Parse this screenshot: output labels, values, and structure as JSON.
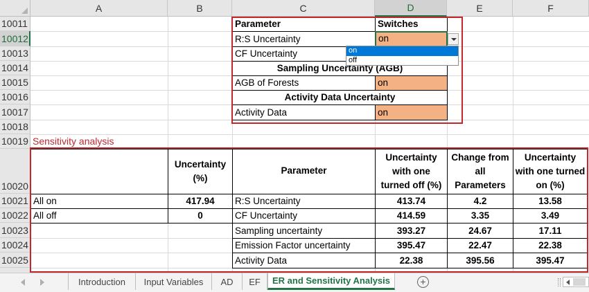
{
  "columns": [
    "A",
    "B",
    "C",
    "D",
    "E",
    "F"
  ],
  "selected_column": "D",
  "rows": [
    "10011",
    "10012",
    "10013",
    "10014",
    "10015",
    "10016",
    "10017",
    "10018",
    "10019",
    "10020",
    "10021",
    "10022",
    "10023",
    "10024",
    "10025"
  ],
  "selected_row": "10012",
  "switches": {
    "header_param": "Parameter",
    "header_switch": "Switches",
    "rs_label": "R:S Uncertainty",
    "rs_value": "on",
    "cf_label": "CF Uncertainty",
    "sampling_section": "Sampling Uncertainty (AGB)",
    "agb_label": "AGB of Forests",
    "agb_value": "on",
    "activity_section": "Activity Data Uncertainty",
    "activity_label": "Activity Data",
    "activity_value": "on"
  },
  "dropdown": {
    "options": [
      "on",
      "off"
    ],
    "highlighted": "on"
  },
  "sensitivity": {
    "title": "Sensitivity analysis",
    "headers": {
      "uncertainty": "Uncertainty (%)",
      "parameter": "Parameter",
      "turned_off": "Uncertainty with one turned off (%)",
      "change": "Change from all Parameters",
      "turned_on": "Uncertainty with one turned on (%)"
    },
    "summary": [
      {
        "label": "All on",
        "value": "417.94"
      },
      {
        "label": "All off",
        "value": "0"
      }
    ],
    "rows": [
      {
        "parameter": "R:S Uncertainty",
        "off": "413.74",
        "change": "4.2",
        "on": "13.58"
      },
      {
        "parameter": "CF Uncertainty",
        "off": "414.59",
        "change": "3.35",
        "on": "3.49"
      },
      {
        "parameter": "Sampling uncertainty",
        "off": "393.27",
        "change": "24.67",
        "on": "17.11"
      },
      {
        "parameter": "Emission Factor uncertainty",
        "off": "395.47",
        "change": "22.47",
        "on": "22.38"
      },
      {
        "parameter": "Activity Data",
        "off": "22.38",
        "change": "395.56",
        "on": "395.47"
      }
    ]
  },
  "tabs": [
    "Introduction",
    "Input Variables",
    "AD",
    "EF",
    "ER and Sensitivity Analysis"
  ],
  "active_tab": "ER and Sensitivity Analysis",
  "colors": {
    "switch_on": "#f4b183",
    "highlight_box": "#c0282e",
    "excel_green": "#217346",
    "dropdown_selected": "#0078d7"
  },
  "icons": {
    "add_sheet": "plus-circle-icon",
    "scroll_prev": "triangle-left-icon",
    "scroll_next": "triangle-right-icon",
    "dropdown": "chevron-down-icon"
  }
}
